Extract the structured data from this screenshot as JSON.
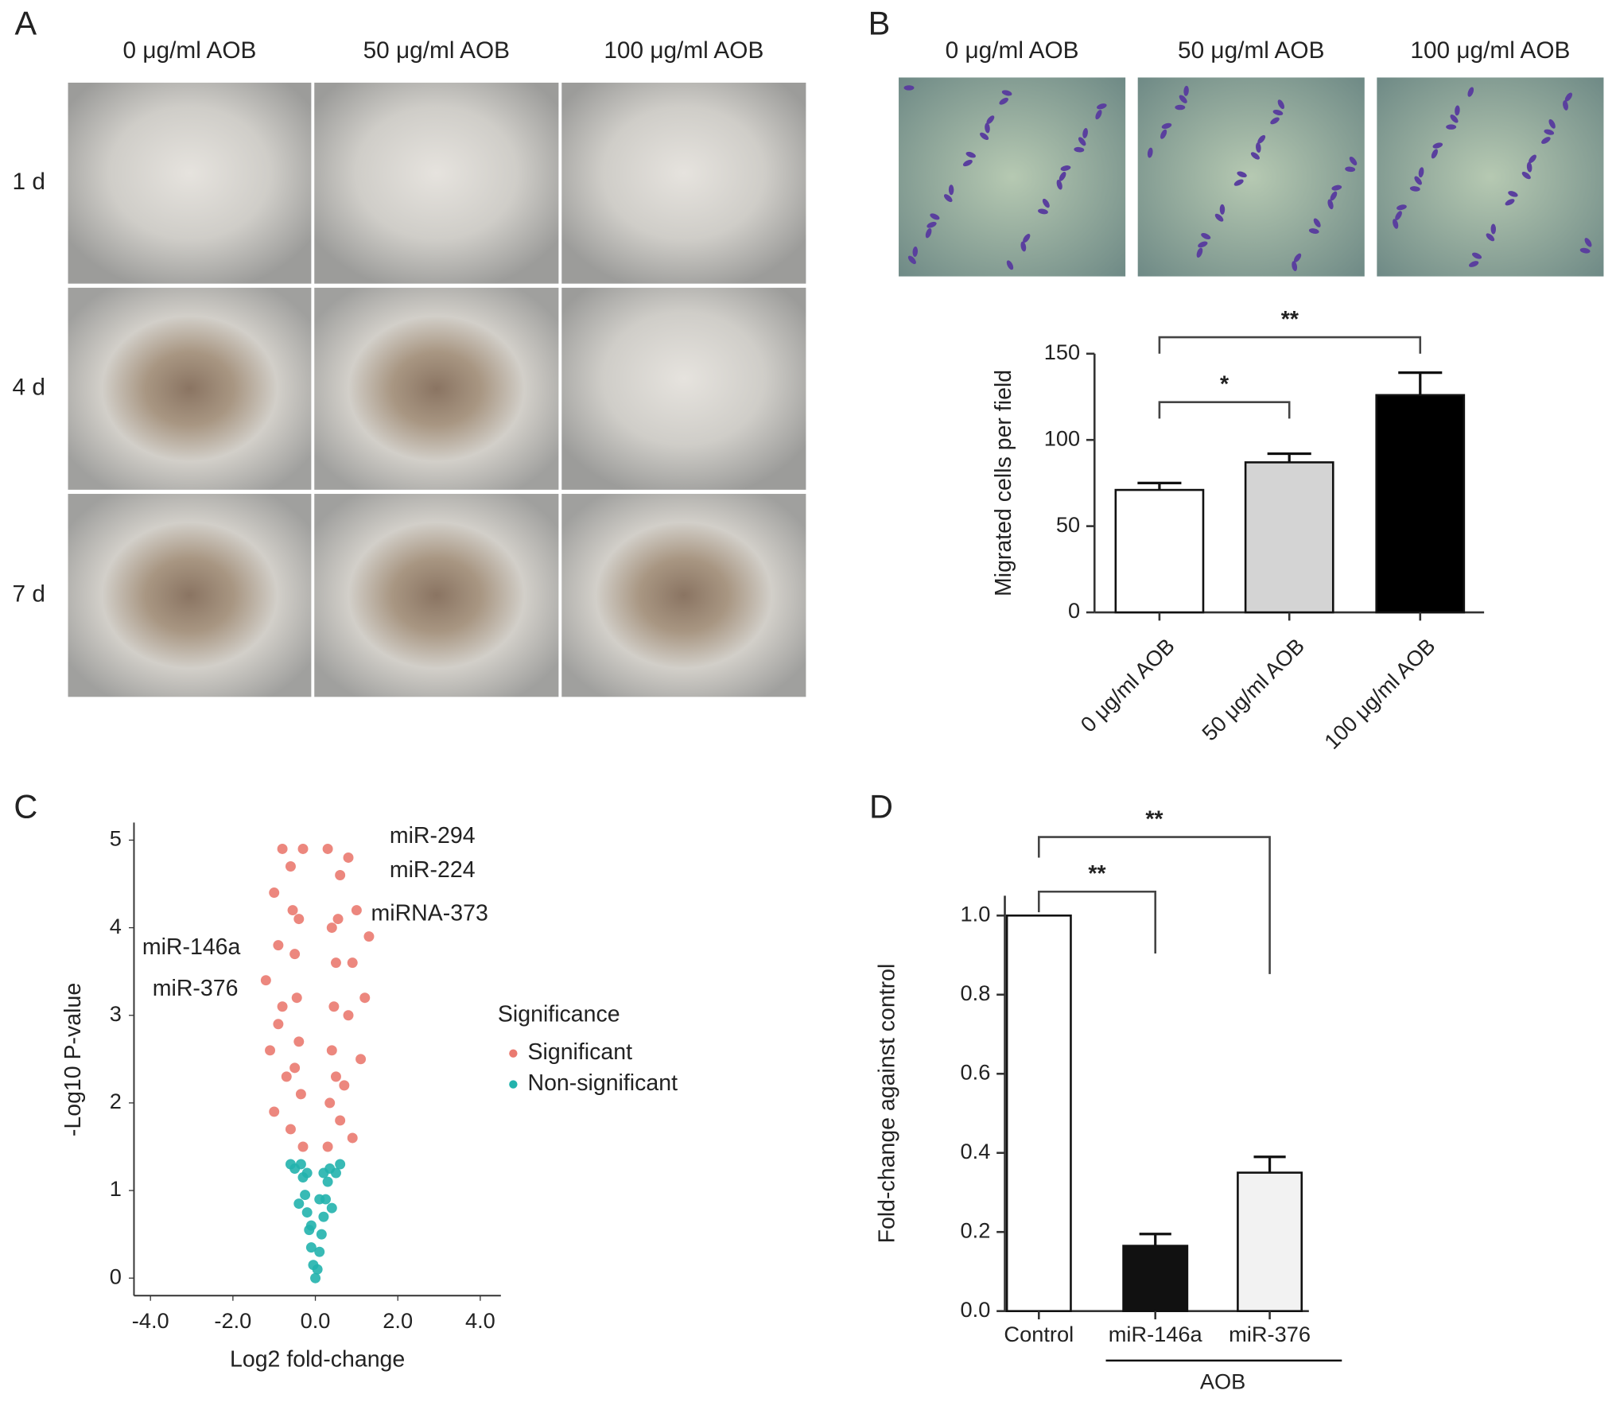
{
  "panel_labels": [
    "A",
    "B",
    "C",
    "D"
  ],
  "panel_a": {
    "columns": [
      "0 μg/ml AOB",
      "50 μg/ml AOB",
      "100 μg/ml AOB"
    ],
    "rows": [
      "1 d",
      "4 d",
      "7 d"
    ]
  },
  "panel_b_images": {
    "columns": [
      "0 μg/ml AOB",
      "50 μg/ml AOB",
      "100 μg/ml AOB"
    ]
  },
  "chart_data": [
    {
      "type": "bar",
      "y_label": "Migrated cells per field",
      "categories": [
        "0 μg/ml AOB",
        "50 μg/ml AOB",
        "100 μg/ml AOB"
      ],
      "values": [
        71,
        87,
        126
      ],
      "errors": [
        4,
        5,
        13
      ],
      "colors": [
        "#ffffff",
        "#d4d4d4",
        "#000000"
      ],
      "ylim": [
        0,
        150
      ],
      "yticks": [
        0,
        50,
        100,
        150
      ],
      "significance": [
        {
          "between": [
            "0 μg/ml AOB",
            "50 μg/ml AOB"
          ],
          "label": "*"
        },
        {
          "between": [
            "0 μg/ml AOB",
            "100 μg/ml AOB"
          ],
          "label": "**"
        }
      ]
    },
    {
      "type": "scatter",
      "x_label": "Log2 fold-change",
      "y_label": "-Log10 P-value",
      "legend_title": "Significance",
      "series": [
        {
          "name": "Significant",
          "color": "#ea7a70",
          "x": [
            0.3,
            0.35,
            0.4,
            0.45,
            0.5,
            0.55,
            0.6,
            0.3,
            0.7,
            0.8,
            0.9,
            1.0,
            0.6,
            1.1,
            1.2,
            0.5,
            0.4,
            0.8,
            1.3,
            0.9,
            -0.3,
            -0.35,
            -0.4,
            -0.45,
            -0.5,
            -0.55,
            -0.6,
            -0.3,
            -0.7,
            -0.8,
            -0.9,
            -1.0,
            -0.6,
            -1.1,
            -1.2,
            -0.5,
            -0.4,
            -0.8,
            -1.0,
            -0.9
          ],
          "values": [
            1.5,
            2.0,
            2.6,
            3.1,
            3.6,
            4.1,
            4.6,
            4.9,
            2.2,
            3.0,
            3.6,
            4.2,
            1.8,
            2.5,
            3.2,
            2.3,
            4.0,
            4.8,
            3.9,
            1.6,
            1.5,
            2.1,
            2.7,
            3.2,
            3.7,
            4.2,
            4.7,
            4.9,
            2.3,
            3.1,
            3.8,
            4.4,
            1.7,
            2.6,
            3.4,
            2.4,
            4.1,
            4.9,
            1.9,
            2.9
          ]
        },
        {
          "name": "Non-significant",
          "color": "#22b3ad",
          "x": [
            0,
            0.05,
            -0.05,
            0.1,
            -0.1,
            0.15,
            -0.15,
            0.2,
            -0.2,
            0.25,
            -0.25,
            0.3,
            -0.3,
            0.35,
            -0.35,
            0.5,
            -0.5,
            0.4,
            -0.4,
            0.2,
            -0.2,
            0.1,
            -0.1,
            0.6,
            -0.6
          ],
          "values": [
            0,
            0.1,
            0.15,
            0.3,
            0.35,
            0.5,
            0.55,
            0.7,
            0.75,
            0.9,
            0.95,
            1.1,
            1.15,
            1.25,
            1.3,
            1.2,
            1.25,
            0.8,
            0.85,
            1.2,
            1.2,
            0.9,
            0.6,
            1.3,
            1.3
          ]
        }
      ],
      "annotations": [
        "miR-294",
        "miR-224",
        "miRNA-373",
        "miR-146a",
        "miR-376"
      ],
      "xlim": [
        -4.4,
        4.5
      ],
      "xticks": [
        {
          "value": -4,
          "label": "-4.0"
        },
        {
          "value": -2,
          "label": "-2.0"
        },
        {
          "value": 0,
          "label": "0.0"
        },
        {
          "value": 2,
          "label": "2.0"
        },
        {
          "value": 4,
          "label": "4.0"
        }
      ],
      "ylim": [
        -0.2,
        5.2
      ],
      "yticks": [
        0,
        1,
        2,
        3,
        4,
        5
      ]
    },
    {
      "type": "bar",
      "y_label": "Fold-change against control",
      "categories": [
        "Control",
        "miR-146a",
        "miR-376"
      ],
      "values": [
        1.0,
        0.165,
        0.35
      ],
      "errors": [
        0,
        0.03,
        0.04
      ],
      "colors": [
        "#ffffff",
        "#111111",
        "#f2f2f2"
      ],
      "group_label": "AOB",
      "ylim": [
        0,
        1.05
      ],
      "yticks": [
        {
          "value": 0,
          "label": "0.0"
        },
        {
          "value": 0.2,
          "label": "0.2"
        },
        {
          "value": 0.4,
          "label": "0.4"
        },
        {
          "value": 0.6,
          "label": "0.6"
        },
        {
          "value": 0.8,
          "label": "0.8"
        },
        {
          "value": 1.0,
          "label": "1.0"
        }
      ],
      "significance": [
        {
          "between": [
            "Control",
            "miR-146a"
          ],
          "label": "**"
        },
        {
          "between": [
            "Control",
            "miR-376"
          ],
          "label": "**"
        }
      ]
    }
  ]
}
